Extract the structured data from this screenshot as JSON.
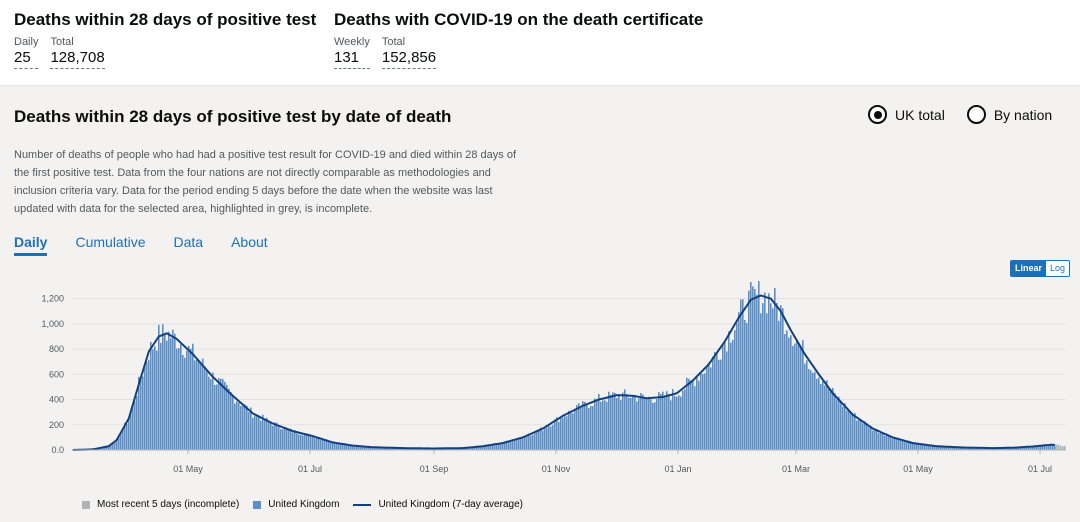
{
  "summary": {
    "left": {
      "title": "Deaths within 28 days of positive test",
      "daily_label": "Daily",
      "daily_value": "25",
      "total_label": "Total",
      "total_value": "128,708"
    },
    "right": {
      "title": "Deaths with COVID-19 on the death certificate",
      "weekly_label": "Weekly",
      "weekly_value": "131",
      "total_label": "Total",
      "total_value": "152,856"
    }
  },
  "card": {
    "title": "Deaths within 28 days of positive test by date of death",
    "radio": [
      {
        "label": "UK total",
        "checked": true
      },
      {
        "label": "By nation",
        "checked": false
      }
    ],
    "description": "Number of deaths of people who had had a positive test result for COVID-19 and died within 28 days of the first positive test. Data from the four nations are not directly comparable as methodologies and inclusion criteria vary. Data for the period ending 5 days before the date when the website was last updated with data for the selected area, highlighted in grey, is incomplete.",
    "tabs": [
      "Daily",
      "Cumulative",
      "Data",
      "About"
    ],
    "active_tab": "Daily",
    "scale": {
      "linear": "Linear",
      "log": "Log",
      "selected": "Linear"
    }
  },
  "colors": {
    "bar": "#5b8fc9",
    "bar_incomplete": "#b1b4b6",
    "avg_line": "#12407f",
    "link": "#1d70b8"
  },
  "chart_data": {
    "type": "bar",
    "title": "Deaths within 28 days of positive test by date of death",
    "ylim": [
      0,
      1300
    ],
    "y_ticks": [
      "0.0",
      "200",
      "400",
      "600",
      "800",
      "1,000",
      "1,200"
    ],
    "x_tick_labels": [
      "01 May",
      "01 Jul",
      "01 Sep",
      "01 Nov",
      "01 Jan",
      "01 Mar",
      "01 May",
      "01 Jul"
    ],
    "x_tick_days": [
      58,
      119,
      181,
      242,
      303,
      362,
      423,
      484
    ],
    "start_date": "2020-03-04",
    "days": 497,
    "incomplete_days": 5,
    "avg_keypoints": [
      [
        0,
        0
      ],
      [
        10,
        5
      ],
      [
        18,
        30
      ],
      [
        22,
        80
      ],
      [
        28,
        250
      ],
      [
        33,
        520
      ],
      [
        38,
        780
      ],
      [
        43,
        900
      ],
      [
        47,
        925
      ],
      [
        52,
        880
      ],
      [
        60,
        760
      ],
      [
        70,
        580
      ],
      [
        80,
        430
      ],
      [
        90,
        290
      ],
      [
        100,
        210
      ],
      [
        110,
        150
      ],
      [
        120,
        110
      ],
      [
        130,
        60
      ],
      [
        140,
        35
      ],
      [
        150,
        22
      ],
      [
        165,
        15
      ],
      [
        180,
        12
      ],
      [
        195,
        15
      ],
      [
        205,
        30
      ],
      [
        215,
        55
      ],
      [
        225,
        100
      ],
      [
        235,
        170
      ],
      [
        245,
        270
      ],
      [
        255,
        350
      ],
      [
        263,
        400
      ],
      [
        272,
        435
      ],
      [
        280,
        430
      ],
      [
        287,
        410
      ],
      [
        295,
        420
      ],
      [
        302,
        450
      ],
      [
        310,
        550
      ],
      [
        318,
        680
      ],
      [
        326,
        860
      ],
      [
        333,
        1050
      ],
      [
        339,
        1190
      ],
      [
        344,
        1225
      ],
      [
        349,
        1200
      ],
      [
        354,
        1100
      ],
      [
        359,
        950
      ],
      [
        366,
        760
      ],
      [
        373,
        600
      ],
      [
        380,
        450
      ],
      [
        390,
        280
      ],
      [
        400,
        170
      ],
      [
        410,
        100
      ],
      [
        420,
        55
      ],
      [
        432,
        30
      ],
      [
        445,
        20
      ],
      [
        460,
        15
      ],
      [
        470,
        18
      ],
      [
        480,
        28
      ],
      [
        488,
        40
      ],
      [
        490,
        42
      ],
      [
        497,
        30
      ]
    ],
    "legend": [
      "Most recent 5 days (incomplete)",
      "United Kingdom",
      "United Kingdom (7-day average)"
    ]
  }
}
